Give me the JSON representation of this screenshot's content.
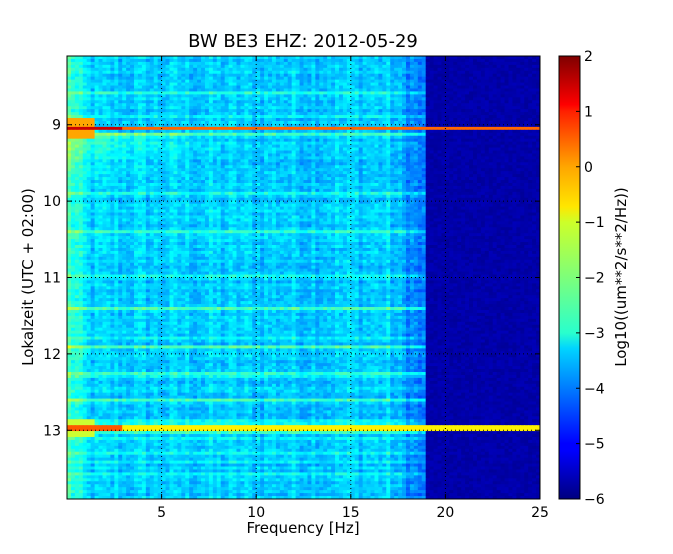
{
  "chart_data": {
    "type": "heatmap",
    "title": "BW BE3 EHZ: 2012-05-29",
    "xlabel": "Frequency [Hz]",
    "ylabel": "Lokalzeit (UTC + 02:00)",
    "xlim": [
      0,
      25
    ],
    "ylim": [
      8.1,
      13.9
    ],
    "y_inverted": true,
    "xticks": [
      5,
      10,
      15,
      20,
      25
    ],
    "xtick_labels": [
      "5",
      "10",
      "15",
      "20",
      "25"
    ],
    "yticks": [
      9,
      10,
      11,
      12,
      13
    ],
    "ytick_labels": [
      "9",
      "10",
      "11",
      "12",
      "13"
    ],
    "grid": "dotted",
    "colormap": "jet",
    "colorbar": {
      "label": "Log10((um**2/s**2/Hz))",
      "range": [
        -6,
        2
      ],
      "ticks": [
        2,
        1,
        0,
        -1,
        -2,
        -3,
        -4,
        -5,
        -6
      ],
      "tick_labels": [
        "2",
        "1",
        "0",
        "−1",
        "−2",
        "−3",
        "−4",
        "−5",
        "−6"
      ]
    },
    "background_level": -3.4,
    "high_freq_cutoff_hz": 19,
    "high_freq_level": -5.8,
    "strong_events": [
      {
        "time": 9.05,
        "level": 0.2
      },
      {
        "time": 12.98,
        "level": -0.9
      }
    ]
  }
}
